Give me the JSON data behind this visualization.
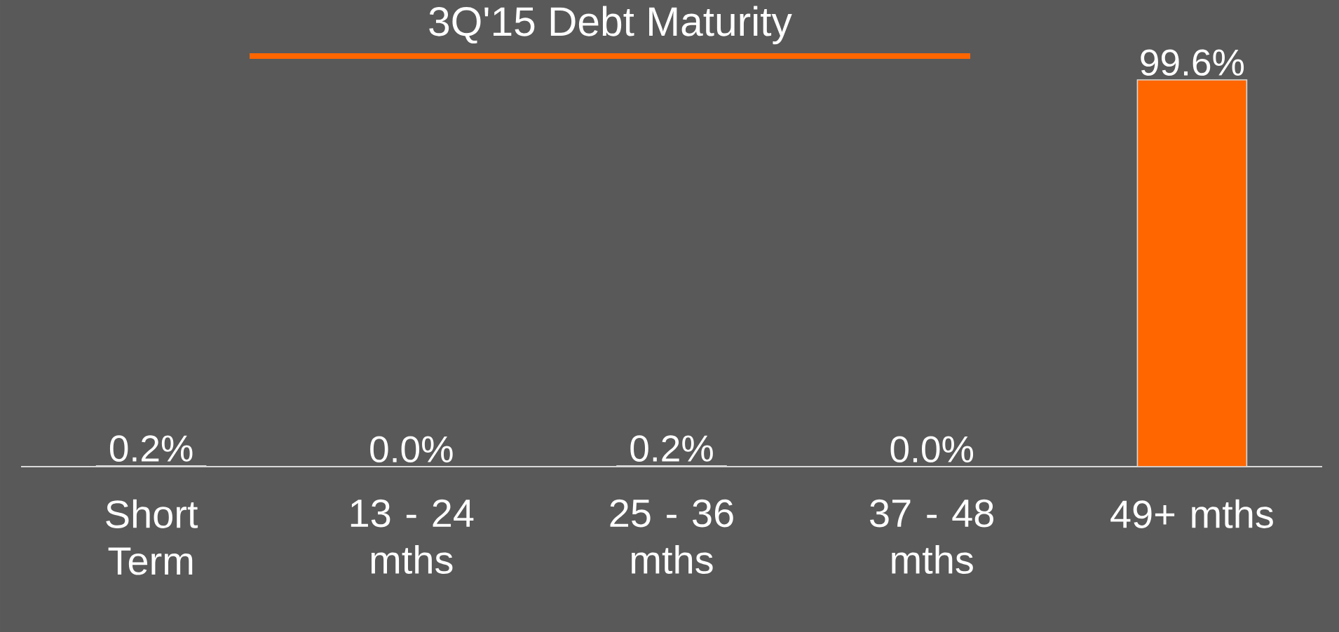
{
  "chart_data": {
    "type": "bar",
    "title": "3Q'15 Debt Maturity",
    "categories": [
      "Short Term",
      "13 - 24 mths",
      "25 - 36 mths",
      "37 - 48 mths",
      "49+ mths"
    ],
    "values": [
      0.2,
      0.0,
      0.2,
      0.0,
      99.6
    ],
    "colors": [
      "#d9d9d9",
      "#d9d9d9",
      "#d9d9d9",
      "#d9d9d9",
      "#ff6600"
    ],
    "value_labels": [
      "0.2%",
      "0.0%",
      "0.2%",
      "0.0%",
      "99.6%"
    ]
  }
}
